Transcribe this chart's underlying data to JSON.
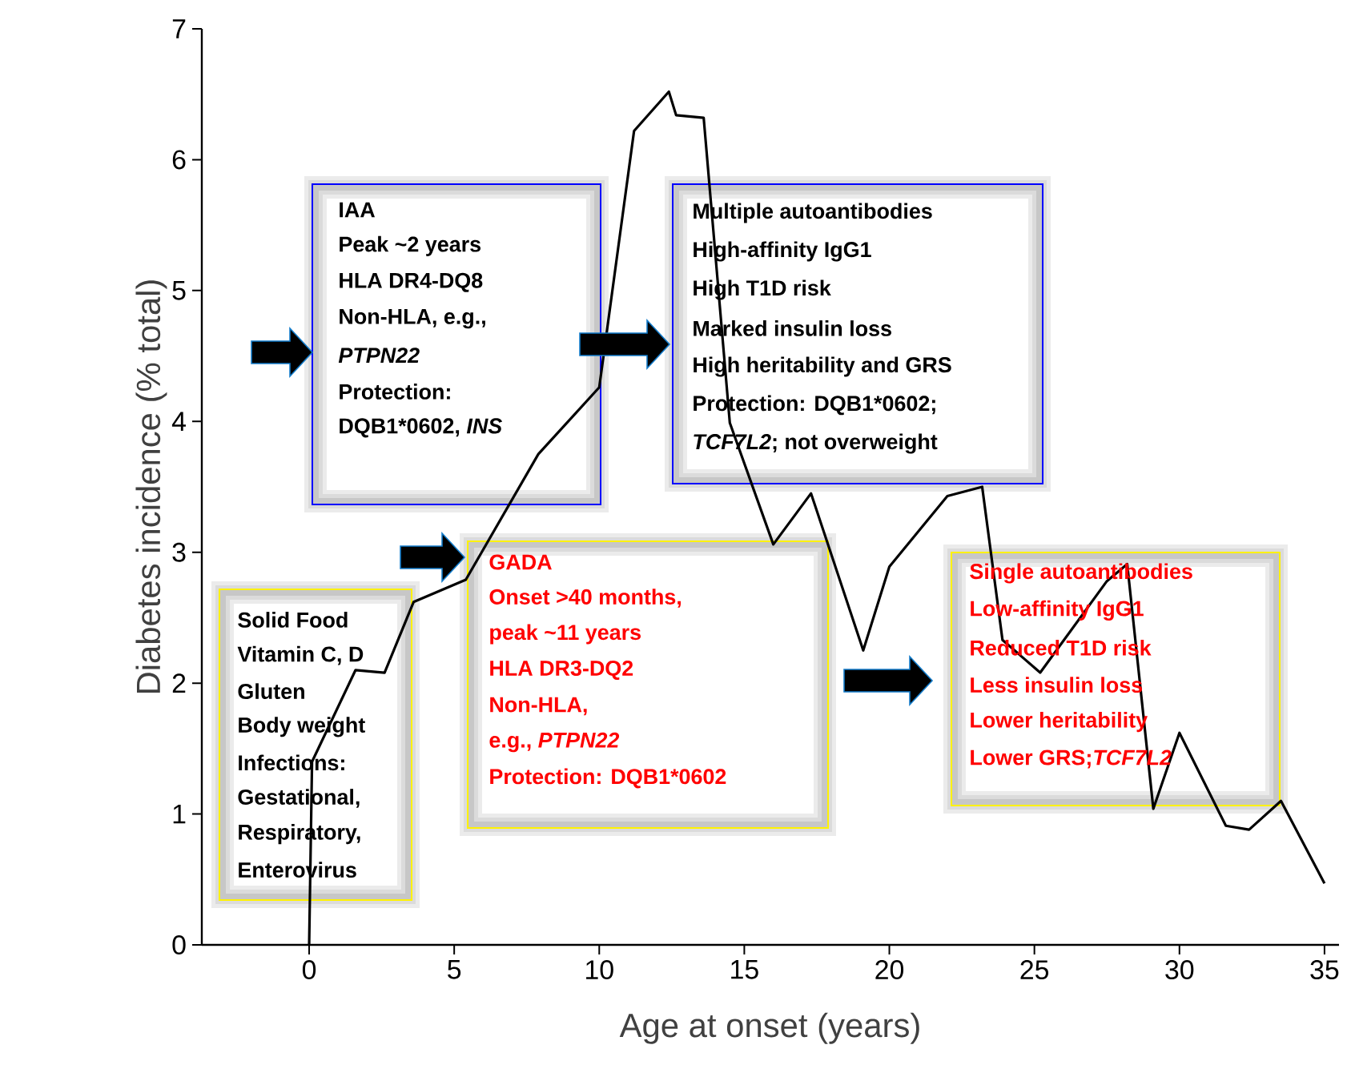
{
  "chart_data": {
    "type": "line",
    "xlabel": "Age at onset (years)",
    "ylabel": "Diabetes incidence (% total)",
    "x": [
      0,
      0.1,
      1.6,
      2.6,
      3.6,
      5.4,
      7.9,
      10.0,
      11.2,
      12.4,
      12.65,
      13.6,
      14.5,
      16.0,
      17.3,
      19.1,
      20.0,
      22.0,
      23.2,
      23.9,
      25.2,
      27.5,
      28.2,
      29.1,
      30.0,
      31.6,
      32.4,
      33.5,
      35.0
    ],
    "values": [
      0,
      1.4,
      2.1,
      2.08,
      2.62,
      2.79,
      3.75,
      4.26,
      6.22,
      6.52,
      6.34,
      6.32,
      3.99,
      3.06,
      3.45,
      2.25,
      2.89,
      3.43,
      3.5,
      2.33,
      2.08,
      2.78,
      2.91,
      1.04,
      1.62,
      0.91,
      0.88,
      1.1,
      0.47
    ],
    "color": "#000000",
    "marker": "none",
    "line_style": "solid",
    "xlim": [
      -3.7,
      35.5
    ],
    "ylim": [
      0,
      7
    ],
    "xticks": [
      0,
      5,
      10,
      15,
      20,
      25,
      30,
      35
    ],
    "yticks": [
      0,
      1,
      2,
      3,
      4,
      5,
      6,
      7
    ],
    "annotations": [
      "Solid Food",
      "Vitamin C, D",
      "Gluten",
      "Body weight",
      "Infections:",
      "Gestational,",
      "Respiratory,",
      "Enterovirus",
      "IAA",
      "Peak ~2 years",
      "HLA DR4-DQ8",
      "Non-HLA, e.g.,",
      "*PTPN22*",
      "Protection:",
      "DQB1*0602,",
      "*INS*",
      "GADA",
      "Onset >40 months,",
      "peak ~11 years",
      "HLA DR3-DQ2",
      "Non-HLA,",
      "e.g., *PTPN22*",
      "Protection: DQB1*0602",
      "Multiple autoantibodies",
      "High-affinity IgG1",
      "High T1D risk",
      "Marked insulin loss",
      "High heritability and GRS",
      "Protection: DQB1*0602;",
      "*TCF7L2*; not overweight",
      "Single autoantibodies",
      "Low-affinity IgG1",
      "Reduced T1D risk",
      "Less insulin loss",
      "Lower  heritability",
      "Lower GRS;*TCF7L2*"
    ]
  }
}
